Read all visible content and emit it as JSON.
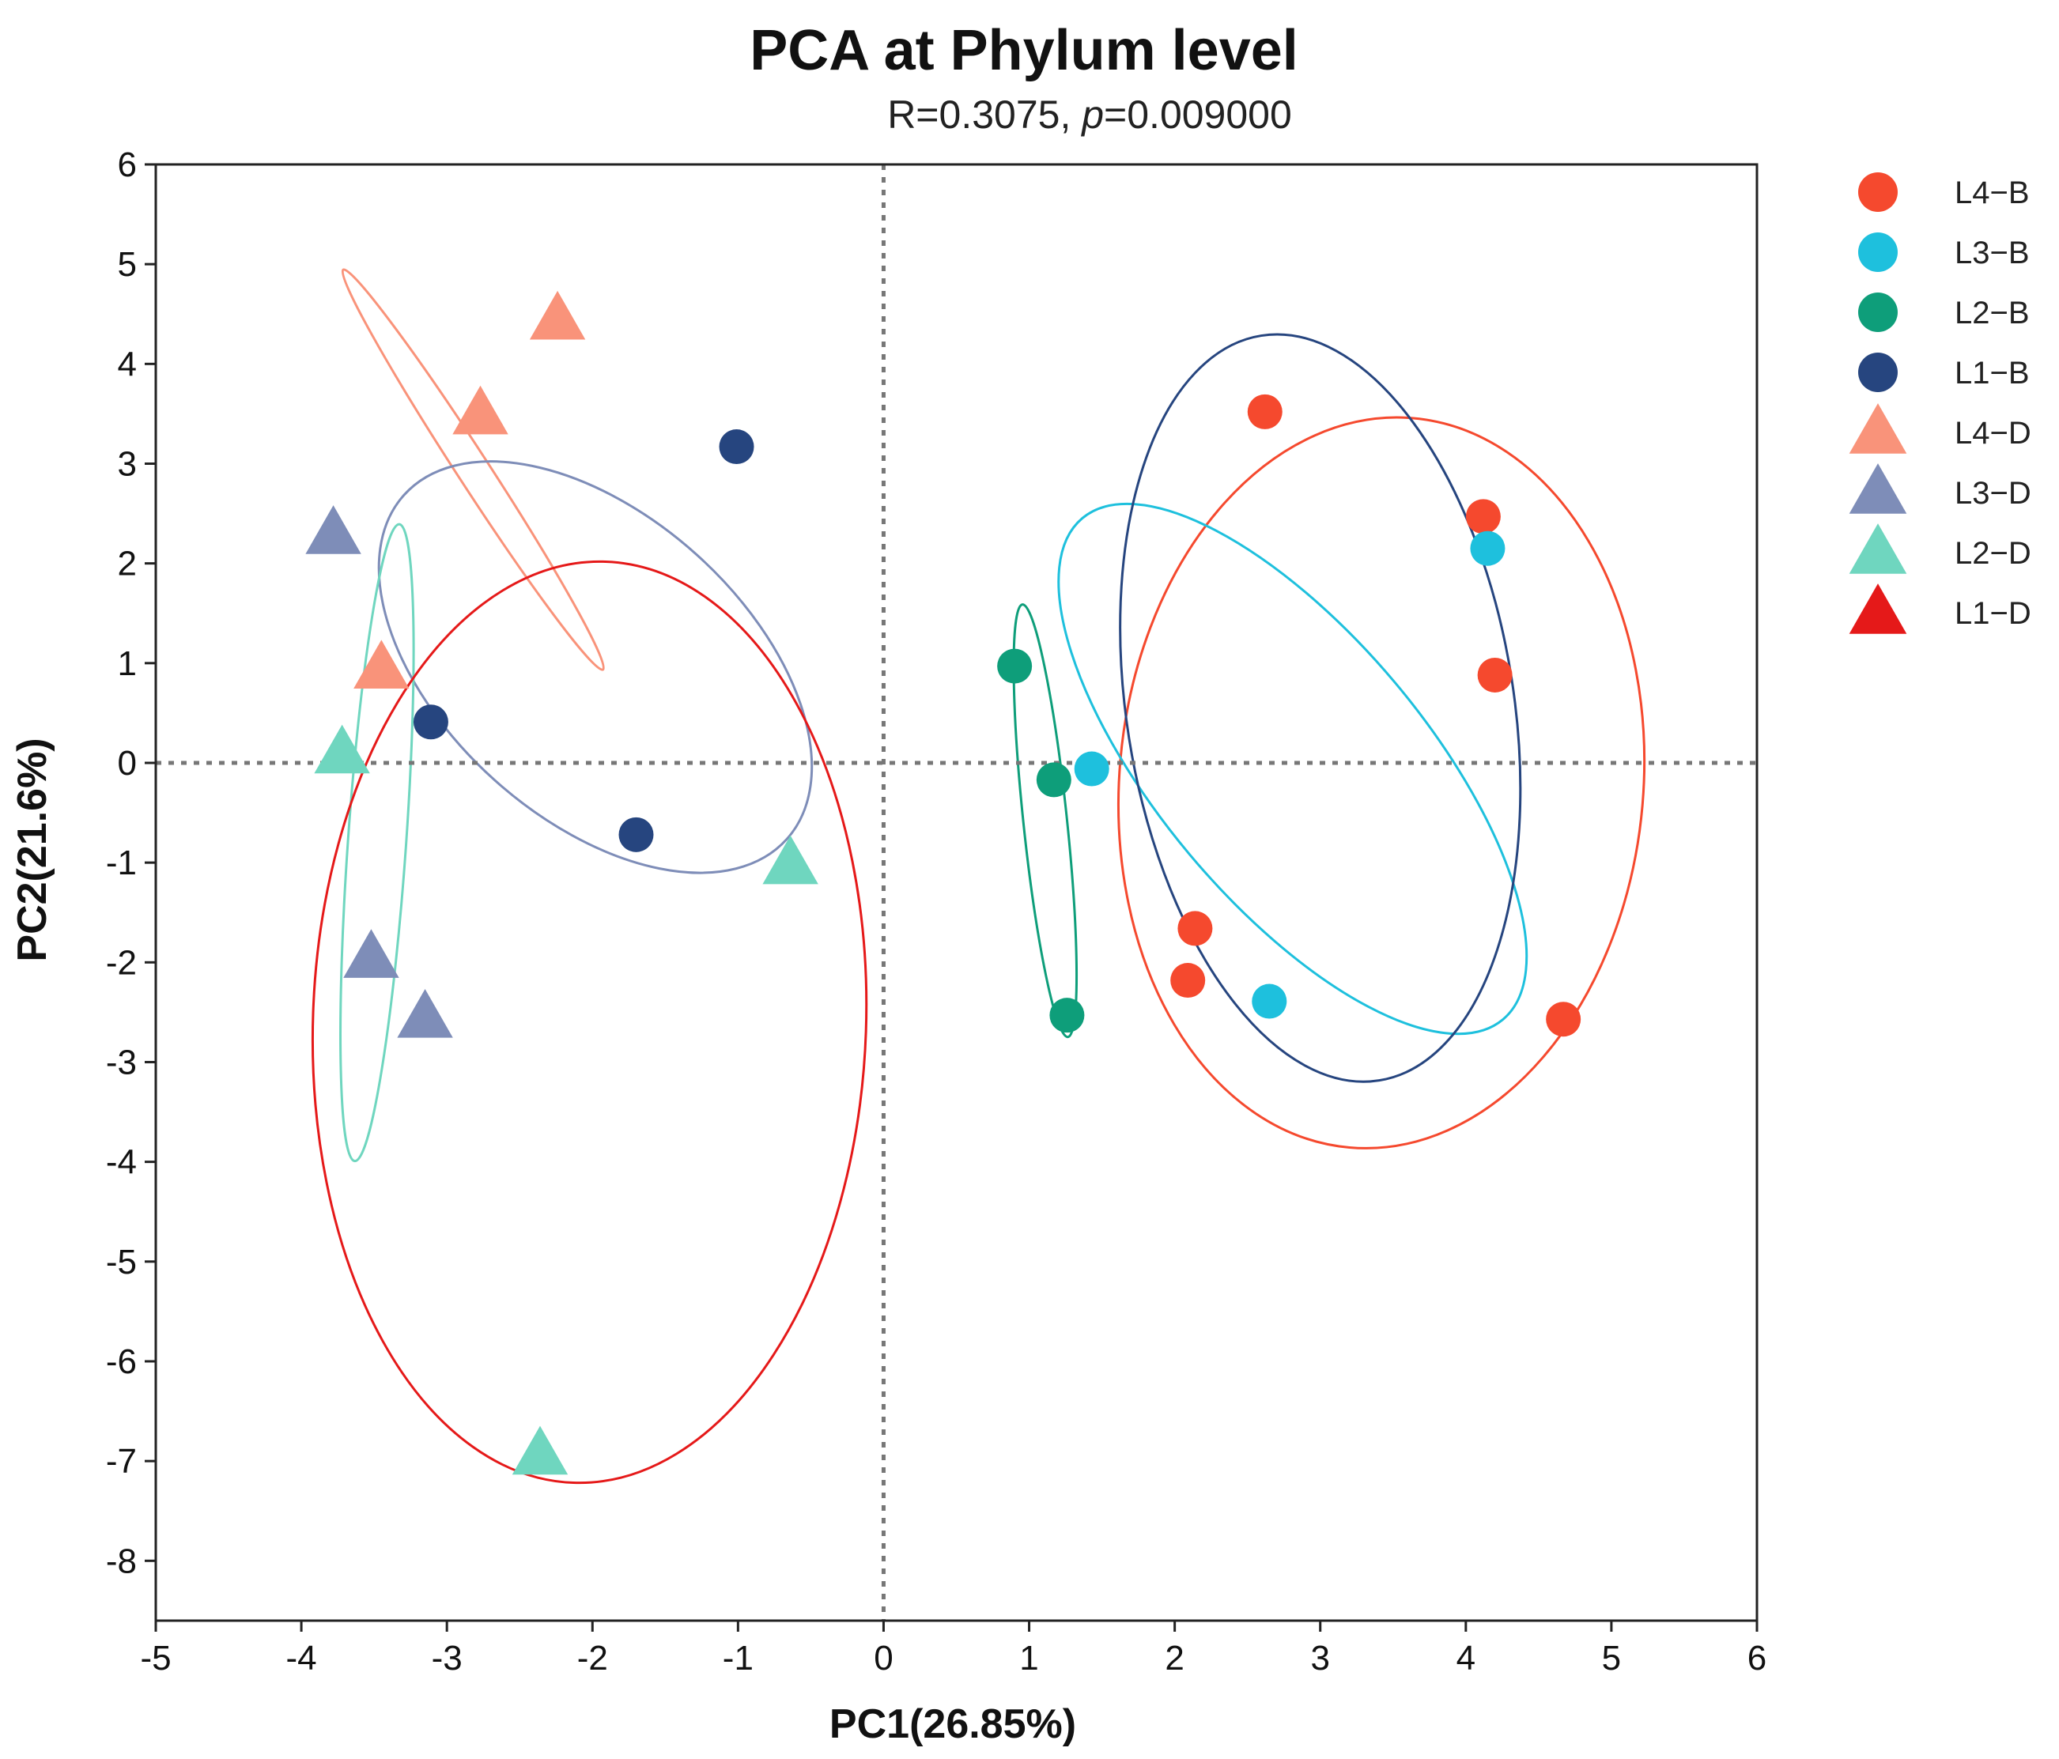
{
  "chart_data": {
    "type": "scatter",
    "title": "PCA at  Phylum level",
    "subtitle_prefix": "R=0.3075, ",
    "subtitle_italic": "p",
    "subtitle_suffix": "=0.009000",
    "xlabel": "PC1(26.85%)",
    "ylabel": "PC2(21.6%)",
    "xlim": [
      -5,
      6
    ],
    "ylim": [
      -8.6,
      6
    ],
    "xticks": [
      -5,
      -4,
      -3,
      -2,
      -1,
      0,
      1,
      2,
      3,
      4,
      5,
      6
    ],
    "yticks": [
      6,
      5,
      4,
      3,
      2,
      1,
      0,
      -1,
      -2,
      -3,
      -4,
      -5,
      -6,
      -7,
      -8
    ],
    "reference_lines": {
      "x": 0,
      "y": 0,
      "style": "dotted"
    },
    "legend_position": "right",
    "series": [
      {
        "name": "L4−B",
        "shape": "circle",
        "color": "#f5492e",
        "points": [
          [
            2.62,
            3.52
          ],
          [
            4.12,
            2.47
          ],
          [
            4.2,
            0.88
          ],
          [
            2.14,
            -1.66
          ],
          [
            2.09,
            -2.18
          ],
          [
            4.67,
            -2.57
          ]
        ]
      },
      {
        "name": "L3−B",
        "shape": "circle",
        "color": "#1ec0dd",
        "points": [
          [
            4.15,
            2.15
          ],
          [
            1.43,
            -0.06
          ],
          [
            2.65,
            -2.39
          ]
        ]
      },
      {
        "name": "L2−B",
        "shape": "circle",
        "color": "#0e9e7a",
        "points": [
          [
            0.9,
            0.97
          ],
          [
            1.17,
            -0.17
          ],
          [
            1.26,
            -2.53
          ]
        ]
      },
      {
        "name": "L1−B",
        "shape": "circle",
        "color": "#26457f",
        "points": [
          [
            -1.01,
            3.17
          ],
          [
            -3.11,
            0.41
          ],
          [
            -1.7,
            -0.72
          ]
        ]
      },
      {
        "name": "L4−D",
        "shape": "triangle",
        "color": "#f9937a",
        "points": [
          [
            -2.24,
            4.45
          ],
          [
            -2.77,
            3.5
          ],
          [
            -3.45,
            0.95
          ]
        ]
      },
      {
        "name": "L3−D",
        "shape": "triangle",
        "color": "#7e8db8",
        "points": [
          [
            -3.78,
            2.3
          ],
          [
            -3.52,
            -1.95
          ],
          [
            -3.15,
            -2.55
          ]
        ]
      },
      {
        "name": "L2−D",
        "shape": "triangle",
        "color": "#6fd6bf",
        "points": [
          [
            -3.72,
            0.1
          ],
          [
            -0.64,
            -1.01
          ],
          [
            -2.36,
            -6.93
          ]
        ]
      },
      {
        "name": "L1−D",
        "shape": "triangle",
        "color": "#e51919",
        "points": []
      }
    ],
    "ellipses": [
      {
        "group": "L4−B",
        "color": "#f5492e",
        "cx": 3.42,
        "cy": -0.2,
        "a": 1.8,
        "b": 3.67,
        "angle": 5
      },
      {
        "group": "L3−B",
        "color": "#1ec0dd",
        "cx": 2.81,
        "cy": -0.06,
        "a": 0.92,
        "b": 3.28,
        "angle": -40
      },
      {
        "group": "L2−B",
        "color": "#0e9e7a",
        "cx": 1.11,
        "cy": -0.58,
        "a": 0.15,
        "b": 2.18,
        "angle": -6
      },
      {
        "group": "L1−B",
        "color": "#26457f",
        "cx": 3.0,
        "cy": 0.55,
        "a": 1.33,
        "b": 3.78,
        "angle": -9
      },
      {
        "group": "L4−D",
        "color": "#f9937a",
        "cx": -2.82,
        "cy": 2.94,
        "a": 0.11,
        "b": 2.39,
        "angle": -33
      },
      {
        "group": "L3−D",
        "color": "#7e8db8",
        "cx": -1.98,
        "cy": 0.96,
        "a": 1.04,
        "b": 2.58,
        "angle": -48
      },
      {
        "group": "L2−D",
        "color": "#6fd6bf",
        "cx": -3.48,
        "cy": -0.8,
        "a": 0.2,
        "b": 3.2,
        "angle": 4
      },
      {
        "group": "L1−D",
        "color": "#e51919",
        "cx": -2.02,
        "cy": -2.6,
        "a": 1.9,
        "b": 4.62,
        "angle": 2
      }
    ]
  }
}
